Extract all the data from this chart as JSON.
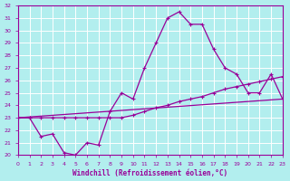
{
  "xlabel": "Windchill (Refroidissement éolien,°C)",
  "bg_color": "#b2eeee",
  "line_color": "#990099",
  "grid_color": "#ffffff",
  "xlim": [
    0,
    23
  ],
  "ylim": [
    20,
    32
  ],
  "xticks": [
    0,
    1,
    2,
    3,
    4,
    5,
    6,
    7,
    8,
    9,
    10,
    11,
    12,
    13,
    14,
    15,
    16,
    17,
    18,
    19,
    20,
    21,
    22,
    23
  ],
  "yticks": [
    20,
    21,
    22,
    23,
    24,
    25,
    26,
    27,
    28,
    29,
    30,
    31,
    32
  ],
  "line1_x": [
    0,
    1,
    2,
    3,
    4,
    5,
    6,
    7,
    8,
    9,
    10,
    11,
    12,
    13,
    14,
    15,
    16,
    17,
    18,
    19,
    20,
    21,
    22,
    23
  ],
  "line1_y": [
    23.0,
    23.0,
    21.5,
    21.7,
    20.2,
    20.0,
    21.0,
    20.8,
    23.5,
    25.0,
    24.5,
    27.0,
    29.0,
    31.0,
    31.5,
    30.5,
    30.5,
    28.5,
    27.0,
    26.5,
    25.0,
    25.0,
    26.5,
    24.5
  ],
  "line2_x": [
    0,
    1,
    2,
    3,
    4,
    5,
    6,
    7,
    8,
    9,
    10,
    11,
    12,
    13,
    14,
    15,
    16,
    17,
    18,
    19,
    20,
    21,
    22,
    23
  ],
  "line2_y": [
    23.0,
    23.0,
    23.0,
    23.0,
    23.0,
    23.0,
    23.0,
    23.0,
    23.0,
    23.0,
    23.2,
    23.5,
    23.8,
    24.0,
    24.3,
    24.5,
    24.7,
    25.0,
    25.3,
    25.5,
    25.7,
    25.9,
    26.1,
    26.3
  ],
  "line3_x": [
    0,
    23
  ],
  "line3_y": [
    23.0,
    24.5
  ]
}
